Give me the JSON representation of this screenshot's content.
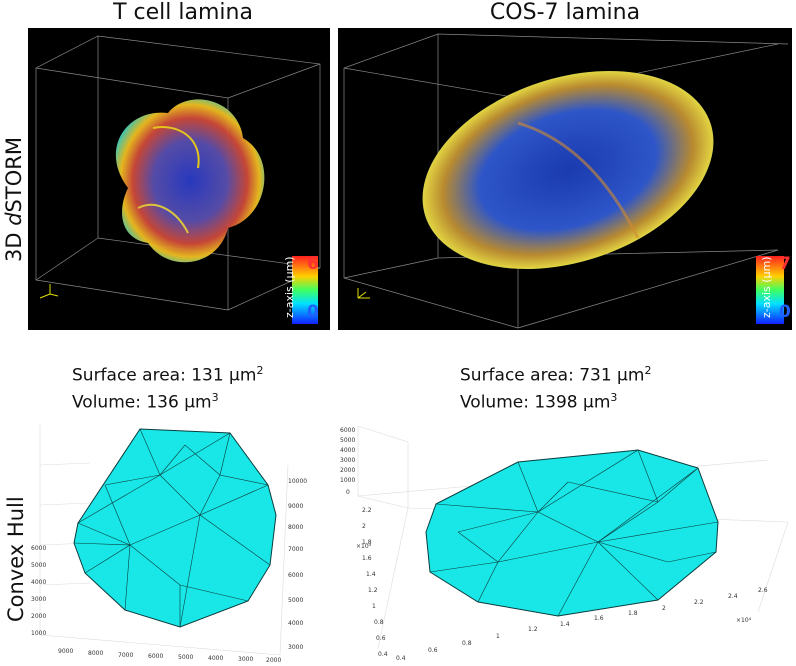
{
  "columns": {
    "left_title": "T cell lamina",
    "right_title": "COS-7 lamina"
  },
  "rows": {
    "top_label_prefix": "3D ",
    "top_label_italic": "d",
    "top_label_suffix": "STORM",
    "bottom_label": "Convex Hull"
  },
  "colorbars": {
    "label": "z-axis (µm)",
    "left": {
      "max": "6",
      "min": "0"
    },
    "right": {
      "max": "7",
      "min": "0"
    }
  },
  "left_stats": {
    "surface_prefix": "Surface area: 131 µm",
    "surface_exp": "2",
    "volume_prefix": "Volume: 136 µm",
    "volume_exp": "3"
  },
  "right_stats": {
    "surface_prefix": "Surface area: 731 µm",
    "surface_exp": "2",
    "volume_prefix": "Volume: 1398 µm",
    "volume_exp": "3"
  },
  "left_axes": {
    "z_ticks": [
      "6000",
      "5000",
      "4000",
      "3000",
      "2000",
      "1000"
    ],
    "x_ticks": [
      "9000",
      "8000",
      "7000",
      "6000",
      "5000",
      "4000",
      "3000",
      "2000"
    ],
    "y_ticks": [
      "10000",
      "9000",
      "8000",
      "7000",
      "6000",
      "5000",
      "4000",
      "3000"
    ]
  },
  "right_axes": {
    "z_ticks": [
      "6000",
      "5000",
      "4000",
      "3000",
      "2000",
      "1000",
      "0"
    ],
    "y_ticks": [
      "2.2",
      "2",
      "1.8",
      "1.6",
      "1.4",
      "1.2",
      "1",
      "0.8",
      "0.6",
      "0.4"
    ],
    "y_exp": "×10⁴",
    "x_ticks": [
      "0.4",
      "0.6",
      "0.8",
      "1",
      "1.2",
      "1.4",
      "1.6",
      "1.8",
      "2",
      "2.2",
      "2.4",
      "2.6"
    ],
    "x_exp": "×10⁴"
  },
  "colors": {
    "hull": "#19e6e6",
    "edge": "#0a3d3d"
  }
}
